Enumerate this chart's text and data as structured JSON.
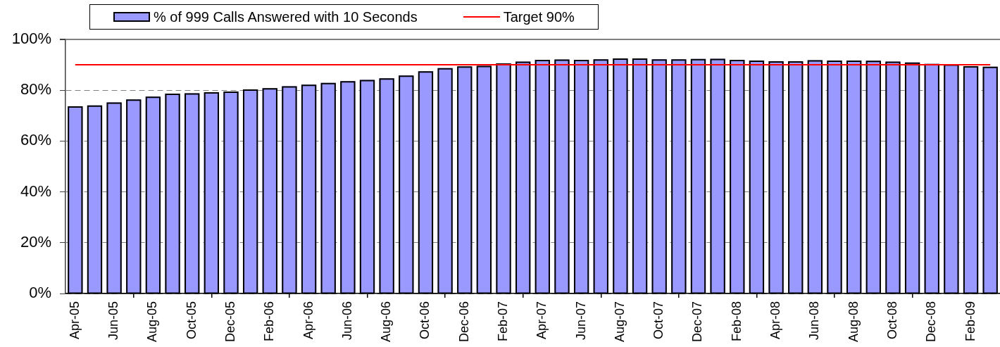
{
  "chart_data": {
    "type": "bar",
    "categories": [
      "Apr-05",
      null,
      "Jun-05",
      null,
      "Aug-05",
      null,
      "Oct-05",
      null,
      "Dec-05",
      null,
      "Feb-06",
      null,
      "Apr-06",
      null,
      "Jun-06",
      null,
      "Aug-06",
      null,
      "Oct-06",
      null,
      "Dec-06",
      null,
      "Feb-07",
      null,
      "Apr-07",
      null,
      "Jun-07",
      null,
      "Aug-07",
      null,
      "Oct-07",
      null,
      "Dec-07",
      null,
      "Feb-08",
      null,
      "Apr-08",
      null,
      "Jun-08",
      null,
      "Aug-08",
      null,
      "Oct-08",
      null,
      "Dec-08",
      null,
      "Feb-09",
      null
    ],
    "series": [
      {
        "name": "% of 999 Calls Answered with 10 Seconds",
        "color": "#9999ff",
        "values": [
          73.7,
          74.0,
          75.2,
          76.4,
          77.5,
          78.7,
          78.8,
          79.2,
          79.5,
          80.3,
          80.8,
          81.6,
          82.2,
          82.9,
          83.6,
          84.1,
          84.7,
          85.8,
          87.5,
          88.7,
          89.4,
          89.6,
          90.6,
          91.3,
          92.0,
          92.1,
          92.0,
          92.2,
          92.5,
          92.5,
          92.2,
          92.2,
          92.3,
          92.4,
          92.0,
          91.7,
          91.4,
          91.4,
          91.8,
          91.7,
          91.7,
          91.6,
          91.3,
          90.9,
          90.4,
          90.2,
          89.5,
          89.3
        ]
      },
      {
        "name": "Target 90%",
        "type": "line",
        "color": "#ff0000",
        "values": [
          90,
          90,
          90,
          90,
          90,
          90,
          90,
          90,
          90,
          90,
          90,
          90,
          90,
          90,
          90,
          90,
          90,
          90,
          90,
          90,
          90,
          90,
          90,
          90,
          90,
          90,
          90,
          90,
          90,
          90,
          90,
          90,
          90,
          90,
          90,
          90,
          90,
          90,
          90,
          90,
          90,
          90,
          90,
          90,
          90,
          90,
          90,
          90
        ]
      }
    ],
    "ylim": [
      0,
      100
    ],
    "yticks": [
      {
        "value": 0,
        "label": "0%"
      },
      {
        "value": 20,
        "label": "20%"
      },
      {
        "value": 40,
        "label": "40%"
      },
      {
        "value": 60,
        "label": "60%"
      },
      {
        "value": 80,
        "label": "80%"
      },
      {
        "value": 100,
        "label": "100%"
      }
    ],
    "grid": "y",
    "legend": "top left"
  }
}
